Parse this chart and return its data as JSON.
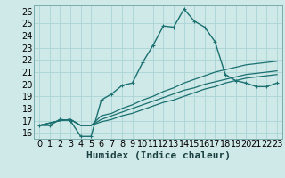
{
  "xlabel": "Humidex (Indice chaleur)",
  "background_color": "#cfe8e8",
  "grid_color": "#aad4d4",
  "line_color": "#1a7070",
  "xlim": [
    -0.5,
    23.5
  ],
  "ylim": [
    15.5,
    26.5
  ],
  "xticks": [
    0,
    1,
    2,
    3,
    4,
    5,
    6,
    7,
    8,
    9,
    10,
    11,
    12,
    13,
    14,
    15,
    16,
    17,
    18,
    19,
    20,
    21,
    22,
    23
  ],
  "yticks": [
    16,
    17,
    18,
    19,
    20,
    21,
    22,
    23,
    24,
    25,
    26
  ],
  "line_main": [
    16.6,
    16.6,
    17.1,
    17.0,
    15.7,
    15.7,
    18.7,
    19.2,
    19.9,
    20.1,
    21.8,
    23.2,
    24.8,
    24.7,
    26.2,
    25.2,
    24.7,
    23.5,
    20.8,
    20.3,
    20.1,
    19.8,
    19.8,
    20.1
  ],
  "line2": [
    16.6,
    16.8,
    17.0,
    17.1,
    16.6,
    16.6,
    16.9,
    17.1,
    17.4,
    17.6,
    17.9,
    18.2,
    18.5,
    18.7,
    19.0,
    19.3,
    19.6,
    19.8,
    20.1,
    20.3,
    20.5,
    20.6,
    20.7,
    20.8
  ],
  "line3": [
    16.6,
    16.8,
    17.0,
    17.1,
    16.6,
    16.6,
    17.1,
    17.4,
    17.7,
    18.0,
    18.3,
    18.6,
    18.9,
    19.2,
    19.5,
    19.7,
    20.0,
    20.2,
    20.4,
    20.6,
    20.8,
    20.9,
    21.0,
    21.1
  ],
  "line4": [
    16.6,
    16.8,
    17.0,
    17.1,
    16.6,
    16.6,
    17.4,
    17.6,
    18.0,
    18.3,
    18.7,
    19.0,
    19.4,
    19.7,
    20.1,
    20.4,
    20.7,
    21.0,
    21.2,
    21.4,
    21.6,
    21.7,
    21.8,
    21.9
  ],
  "xlabel_fontsize": 8,
  "tick_fontsize": 7
}
